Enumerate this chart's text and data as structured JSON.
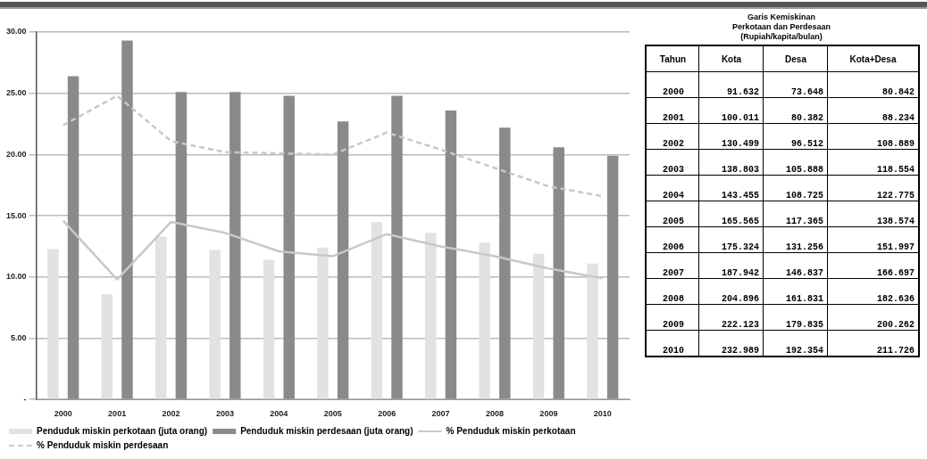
{
  "chart_data": [
    {
      "type": "bar",
      "categories": [
        "2000",
        "2001",
        "2002",
        "2003",
        "2004",
        "2005",
        "2006",
        "2007",
        "2008",
        "2009",
        "2010"
      ],
      "series": [
        {
          "name": "Penduduk miskin perkotaan (juta orang)",
          "color": "#e2e2e2",
          "values": [
            12.3,
            8.6,
            13.3,
            12.2,
            11.4,
            12.4,
            14.5,
            13.6,
            12.8,
            11.9,
            11.1
          ]
        },
        {
          "name": "Penduduk miskin perdesaan (juta orang)",
          "color": "#8a8a8a",
          "values": [
            26.4,
            29.3,
            25.1,
            25.1,
            24.8,
            22.7,
            24.8,
            23.6,
            22.2,
            20.6,
            19.9
          ]
        },
        {
          "name": "% Penduduk miskin perkotaan",
          "type": "line",
          "color": "#c8c8c8",
          "line_style": "solid",
          "values": [
            14.6,
            9.8,
            14.5,
            13.6,
            12.1,
            11.7,
            13.5,
            12.5,
            11.7,
            10.7,
            9.9
          ]
        },
        {
          "name": "% Penduduk miskin perdesaan",
          "type": "line",
          "color": "#c8c8c8",
          "line_style": "dashed",
          "values": [
            22.4,
            24.8,
            21.1,
            20.2,
            20.1,
            20.0,
            21.8,
            20.4,
            18.9,
            17.4,
            16.6
          ]
        }
      ],
      "ylim": [
        0,
        30
      ],
      "yticks": [
        {
          "value": 0,
          "label": "-"
        },
        {
          "value": 5,
          "label": "5.00"
        },
        {
          "value": 10,
          "label": "10.00"
        },
        {
          "value": 15,
          "label": "15.00"
        },
        {
          "value": 20,
          "label": "20.00"
        },
        {
          "value": 25,
          "label": "25.00"
        },
        {
          "value": 30,
          "label": "30.00"
        }
      ],
      "grid": "y",
      "legend": "bottom",
      "marker": "none"
    },
    {
      "type": "other",
      "title": "Garis Kemiskinan\nPerkotaan dan Perdesaan\n(Rupiah/kapita/bulan)",
      "ylabel": "Tahun",
      "categories": [
        "Kota",
        "Desa",
        "Kota+Desa"
      ],
      "y_categories": [
        "2000",
        "2001",
        "2002",
        "2003",
        "2004",
        "2005",
        "2006",
        "2007",
        "2008",
        "2009",
        "2010"
      ],
      "cell_labels": [
        [
          "91.632",
          "73.648",
          "80.842"
        ],
        [
          "100.011",
          "80.382",
          "88.234"
        ],
        [
          "130.499",
          "96.512",
          "108.889"
        ],
        [
          "138.803",
          "105.888",
          "118.554"
        ],
        [
          "143.455",
          "108.725",
          "122.775"
        ],
        [
          "165.565",
          "117.365",
          "138.574"
        ],
        [
          "175.324",
          "131.256",
          "151.997"
        ],
        [
          "187.942",
          "146.837",
          "166.697"
        ],
        [
          "204.896",
          "161.831",
          "182.636"
        ],
        [
          "222.123",
          "179.835",
          "200.262"
        ],
        [
          "232.989",
          "192.354",
          "211.726"
        ]
      ]
    }
  ]
}
